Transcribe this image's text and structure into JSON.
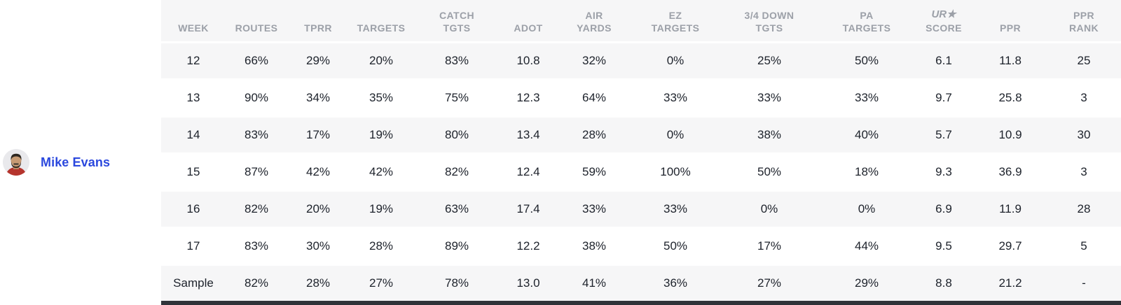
{
  "player": {
    "name": "Mike Evans"
  },
  "table": {
    "columns": [
      {
        "id": "week",
        "lines": [
          "WEEK"
        ]
      },
      {
        "id": "routes",
        "lines": [
          "ROUTES"
        ]
      },
      {
        "id": "tprr",
        "lines": [
          "TPRR"
        ]
      },
      {
        "id": "targets",
        "lines": [
          "TARGETS"
        ]
      },
      {
        "id": "catch_tgts",
        "lines": [
          "CATCH",
          "TGTS"
        ]
      },
      {
        "id": "adot",
        "lines": [
          "ADOT"
        ]
      },
      {
        "id": "air_yards",
        "lines": [
          "AIR",
          "YARDS"
        ]
      },
      {
        "id": "ez_targets",
        "lines": [
          "EZ",
          "TARGETS"
        ]
      },
      {
        "id": "down_3_4_tgts",
        "lines": [
          "3/4 DOWN",
          "TGTS"
        ]
      },
      {
        "id": "pa_targets",
        "lines": [
          "PA",
          "TARGETS"
        ]
      },
      {
        "id": "ur_score",
        "lines": [
          "UR★",
          "SCORE"
        ],
        "logo": true
      },
      {
        "id": "ppr",
        "lines": [
          "PPR"
        ]
      },
      {
        "id": "ppr_rank",
        "lines": [
          "PPR",
          "RANK"
        ]
      }
    ],
    "rows": [
      [
        "12",
        "66%",
        "29%",
        "20%",
        "83%",
        "10.8",
        "32%",
        "0%",
        "25%",
        "50%",
        "6.1",
        "11.8",
        "25"
      ],
      [
        "13",
        "90%",
        "34%",
        "35%",
        "75%",
        "12.3",
        "64%",
        "33%",
        "33%",
        "33%",
        "9.7",
        "25.8",
        "3"
      ],
      [
        "14",
        "83%",
        "17%",
        "19%",
        "80%",
        "13.4",
        "28%",
        "0%",
        "38%",
        "40%",
        "5.7",
        "10.9",
        "30"
      ],
      [
        "15",
        "87%",
        "42%",
        "42%",
        "82%",
        "12.4",
        "59%",
        "100%",
        "50%",
        "18%",
        "9.3",
        "36.9",
        "3"
      ],
      [
        "16",
        "82%",
        "20%",
        "19%",
        "63%",
        "17.4",
        "33%",
        "33%",
        "0%",
        "0%",
        "6.9",
        "11.9",
        "28"
      ],
      [
        "17",
        "83%",
        "30%",
        "28%",
        "89%",
        "12.2",
        "38%",
        "50%",
        "17%",
        "44%",
        "9.5",
        "29.7",
        "5"
      ],
      [
        "Sample",
        "82%",
        "28%",
        "27%",
        "78%",
        "13.0",
        "41%",
        "36%",
        "27%",
        "29%",
        "8.8",
        "21.2",
        "-"
      ]
    ]
  },
  "colors": {
    "player_name_blue": "#2b48de",
    "row_stripe_gray": "#f6f6f7",
    "header_text_gray": "#9ca0a8",
    "cell_text": "#1d222b",
    "bottom_bar": "#2f3339",
    "jersey_red": "#b5342d"
  }
}
